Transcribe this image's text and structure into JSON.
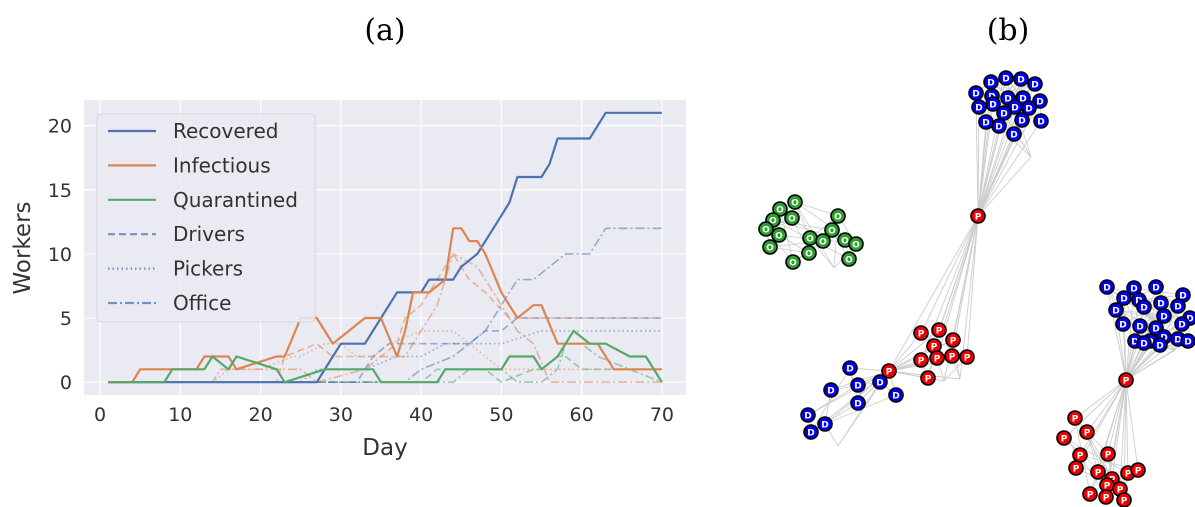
{
  "panel_labels": {
    "a": "(a)",
    "b": "(b)"
  },
  "colors": {
    "recovered": "#4c72b0",
    "infectious": "#dd8452",
    "quarantined": "#55a868",
    "plot_bg": "#eaeaf2",
    "grid": "#ffffff",
    "driver_node": "#0000ee",
    "picker_node": "#ee0000",
    "office_node": "#2ca02c",
    "edge": "#cccccc"
  },
  "chart_data": {
    "type": "line",
    "xlabel": "Day",
    "ylabel": "Workers",
    "xlim": [
      -2,
      73
    ],
    "ylim": [
      -1,
      22
    ],
    "xticks": [
      0,
      10,
      20,
      30,
      40,
      50,
      60,
      70
    ],
    "yticks": [
      0,
      5,
      10,
      15,
      20
    ],
    "grid": true,
    "legend_position": "upper-left",
    "legend": [
      {
        "label": "Recovered",
        "style": "solid",
        "color": "#4c72b0"
      },
      {
        "label": "Infectious",
        "style": "solid",
        "color": "#dd8452"
      },
      {
        "label": "Quarantined",
        "style": "solid",
        "color": "#55a868"
      },
      {
        "label": "Drivers",
        "style": "dashed",
        "color": "#4c72b0"
      },
      {
        "label": "Pickers",
        "style": "dotted",
        "color": "#4c72b0"
      },
      {
        "label": "Office",
        "style": "dashdot",
        "color": "#4c72b0"
      }
    ],
    "series": [
      {
        "name": "Recovered",
        "style": "solid",
        "color": "#4c72b0",
        "alpha": 1,
        "x": [
          1,
          27,
          29,
          30,
          33,
          35,
          37,
          40,
          41,
          44,
          45,
          47,
          49,
          51,
          52,
          55,
          56,
          57,
          61,
          63,
          70
        ],
        "y": [
          0,
          0,
          2,
          3,
          3,
          5,
          7,
          7,
          8,
          8,
          9,
          10,
          12,
          14,
          16,
          16,
          17,
          19,
          19,
          21,
          21
        ]
      },
      {
        "name": "Infectious",
        "style": "solid",
        "color": "#dd8452",
        "alpha": 1,
        "x": [
          1,
          4,
          5,
          12,
          13,
          16,
          17,
          22,
          23,
          25,
          27,
          29,
          31,
          33,
          35,
          37,
          38,
          39,
          41,
          43,
          44,
          45,
          46,
          47,
          48,
          50,
          52,
          54,
          55,
          57,
          62,
          64,
          70
        ],
        "y": [
          0,
          0,
          1,
          1,
          2,
          2,
          1,
          2,
          2,
          5,
          5,
          3,
          4,
          5,
          5,
          2,
          4,
          7,
          7,
          8,
          12,
          12,
          11,
          11,
          10,
          7,
          5,
          6,
          6,
          3,
          3,
          1,
          1
        ]
      },
      {
        "name": "Quarantined",
        "style": "solid",
        "color": "#55a868",
        "alpha": 1,
        "x": [
          1,
          8,
          9,
          13,
          14,
          16,
          17,
          22,
          23,
          28,
          30,
          34,
          35,
          42,
          43,
          50,
          51,
          54,
          55,
          57,
          58,
          59,
          61,
          63,
          66,
          68,
          70
        ],
        "y": [
          0,
          0,
          1,
          1,
          2,
          1,
          2,
          1,
          0,
          1,
          1,
          1,
          0,
          0,
          1,
          1,
          2,
          2,
          1,
          2,
          3,
          4,
          3,
          3,
          2,
          2,
          0
        ]
      },
      {
        "name": "Drivers infectious",
        "style": "dashed",
        "color": "#dd8452",
        "alpha": 0.55,
        "x": [
          1,
          22,
          23,
          27,
          29,
          31,
          33,
          35,
          37,
          38,
          40,
          43,
          44,
          46,
          48,
          51,
          57,
          70
        ],
        "y": [
          0,
          0,
          2,
          3,
          2,
          2,
          2,
          2,
          3,
          5,
          6,
          9,
          10,
          8,
          7,
          5,
          5,
          5
        ]
      },
      {
        "name": "Drivers quarantined",
        "style": "dashed",
        "color": "#55a868",
        "alpha": 0.55,
        "x": [
          1,
          40,
          42,
          48,
          50,
          54,
          55,
          57,
          58,
          60,
          70
        ],
        "y": [
          0,
          0,
          1,
          1,
          0,
          1,
          1,
          2,
          2,
          1,
          1
        ]
      },
      {
        "name": "Drivers recovered",
        "style": "dashed",
        "color": "#4c72b0",
        "alpha": 0.55,
        "x": [
          1,
          32,
          34,
          36,
          38,
          40,
          42,
          46,
          48,
          50,
          52,
          70
        ],
        "y": [
          0,
          0,
          2,
          3,
          3,
          3,
          3,
          3,
          4,
          4,
          5,
          5
        ]
      },
      {
        "name": "Pickers infectious",
        "style": "dotted",
        "color": "#dd8452",
        "alpha": 0.55,
        "x": [
          1,
          14,
          16,
          20,
          24,
          25,
          28,
          30,
          32,
          34,
          36,
          40,
          44,
          46,
          48,
          50,
          70
        ],
        "y": [
          0,
          0,
          1,
          1,
          2,
          2,
          3,
          3,
          2,
          2,
          3,
          4,
          4,
          3,
          2,
          1,
          1
        ]
      },
      {
        "name": "Pickers recovered",
        "style": "dotted",
        "color": "#4c72b0",
        "alpha": 0.55,
        "x": [
          1,
          25,
          27,
          31,
          33,
          37,
          40,
          43,
          47,
          50,
          55,
          58,
          70
        ],
        "y": [
          0,
          0,
          1,
          1,
          1,
          2,
          2,
          3,
          3,
          3,
          4,
          4,
          4
        ]
      },
      {
        "name": "Office infectious",
        "style": "dashdot",
        "color": "#dd8452",
        "alpha": 0.55,
        "x": [
          1,
          14,
          15,
          25,
          27,
          33,
          35,
          38,
          42,
          44,
          47,
          50,
          52,
          54,
          56,
          70
        ],
        "y": [
          0,
          0,
          1,
          1,
          0,
          1,
          2,
          2,
          6,
          10,
          9,
          6,
          4,
          3,
          0,
          0
        ]
      },
      {
        "name": "Office quarantined",
        "style": "dashdot",
        "color": "#55a868",
        "alpha": 0.55,
        "x": [
          1,
          44,
          46,
          50,
          52,
          55,
          57,
          58,
          60,
          62,
          70
        ],
        "y": [
          0,
          0,
          1,
          1,
          0,
          0,
          1,
          3,
          3,
          2,
          0
        ]
      },
      {
        "name": "Office recovered",
        "style": "dashdot",
        "color": "#4c72b0",
        "alpha": 0.55,
        "x": [
          1,
          38,
          40,
          44,
          46,
          48,
          50,
          52,
          54,
          56,
          58,
          61,
          62,
          63,
          70
        ],
        "y": [
          0,
          0,
          1,
          2,
          3,
          4,
          6,
          8,
          8,
          9,
          10,
          10,
          11,
          12,
          12
        ]
      }
    ]
  },
  "network": {
    "node_labels": {
      "driver": "D",
      "picker": "P",
      "office": "O"
    },
    "clusters": [
      {
        "type": "driver",
        "count": 19
      },
      {
        "type": "office",
        "count": 16
      },
      {
        "type": "picker",
        "count": 9
      },
      {
        "type": "driver",
        "count": 9
      },
      {
        "type": "driver",
        "count": 23
      },
      {
        "type": "picker",
        "count": 16
      }
    ]
  }
}
